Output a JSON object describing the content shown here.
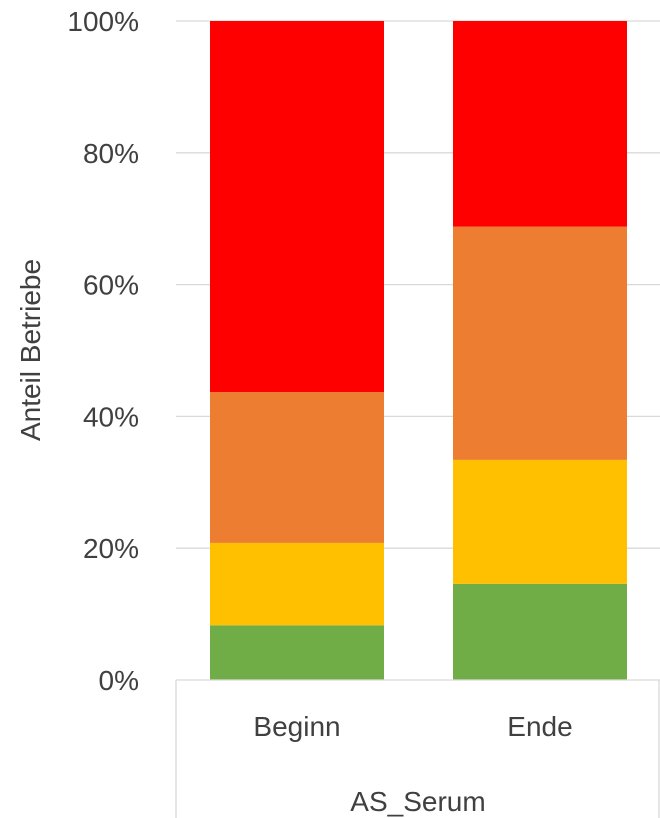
{
  "chart_data": {
    "type": "bar",
    "stacked": true,
    "percent_stacked": true,
    "categories": [
      "Beginn",
      "Ende"
    ],
    "category_group_label": "AS_Serum",
    "ylabel": "Anteil Betriebe",
    "xlabel": "",
    "ylim": [
      0,
      100
    ],
    "yticks": [
      "0%",
      "20%",
      "40%",
      "60%",
      "80%",
      "100%"
    ],
    "grid": true,
    "legend": "none",
    "series": [
      {
        "color": "#70ad47",
        "values": [
          8.3,
          14.6
        ]
      },
      {
        "color": "#ffc000",
        "values": [
          12.5,
          18.8
        ]
      },
      {
        "color": "#ed7d31",
        "values": [
          22.9,
          35.4
        ]
      },
      {
        "color": "#ff0000",
        "values": [
          56.3,
          31.2
        ]
      }
    ]
  }
}
